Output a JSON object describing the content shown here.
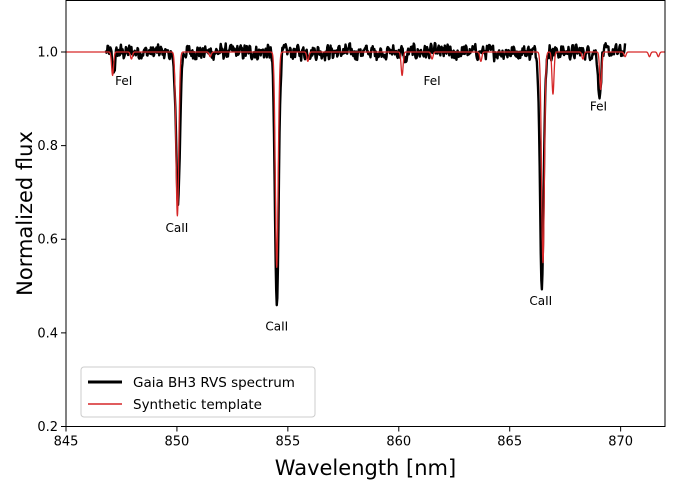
{
  "chart_data": {
    "type": "line",
    "xlabel": "Wavelength [nm]",
    "ylabel": "Normalized flux",
    "xlim": [
      845,
      872
    ],
    "ylim": [
      0.2,
      1.11
    ],
    "xticks": [
      845,
      850,
      855,
      860,
      865,
      870
    ],
    "yticks": [
      0.2,
      0.4,
      0.6,
      0.8,
      1.0
    ],
    "grid": false,
    "legend_position": "lower-left",
    "series": [
      {
        "name": "Gaia BH3 RVS spectrum",
        "color": "#000000",
        "x_range": [
          846.8,
          870.2
        ],
        "continuum": 1.0,
        "noise_amplitude": 0.02,
        "lines": [
          {
            "center": 847.15,
            "depth": 0.04
          },
          {
            "center": 849.8,
            "depth": 0.02
          },
          {
            "center": 850.05,
            "depth": 0.33
          },
          {
            "center": 854.5,
            "depth": 0.54
          },
          {
            "center": 860.3,
            "depth": 0.02
          },
          {
            "center": 862.5,
            "depth": 0.015
          },
          {
            "center": 866.45,
            "depth": 0.49
          },
          {
            "center": 869.05,
            "depth": 0.1
          }
        ]
      },
      {
        "name": "Synthetic template",
        "color": "#d62728",
        "x_range": [
          845,
          872
        ],
        "continuum": 1.0,
        "lines": [
          {
            "center": 847.1,
            "depth": 0.05
          },
          {
            "center": 847.95,
            "depth": 0.015
          },
          {
            "center": 850.02,
            "depth": 0.35
          },
          {
            "center": 851.5,
            "depth": 0.01
          },
          {
            "center": 854.5,
            "depth": 0.46
          },
          {
            "center": 855.9,
            "depth": 0.02
          },
          {
            "center": 860.15,
            "depth": 0.05
          },
          {
            "center": 861.5,
            "depth": 0.015
          },
          {
            "center": 863.7,
            "depth": 0.02
          },
          {
            "center": 866.5,
            "depth": 0.45
          },
          {
            "center": 866.95,
            "depth": 0.09
          },
          {
            "center": 868.3,
            "depth": 0.015
          },
          {
            "center": 869.1,
            "depth": 0.08
          },
          {
            "center": 870.2,
            "depth": 0.01
          },
          {
            "center": 871.3,
            "depth": 0.01
          },
          {
            "center": 871.7,
            "depth": 0.01
          }
        ]
      }
    ],
    "annotations": [
      {
        "text": "FeI",
        "x": 847.6,
        "y": 0.93
      },
      {
        "text": "CaII",
        "x": 850.0,
        "y": 0.615
      },
      {
        "text": "CaII",
        "x": 854.5,
        "y": 0.405
      },
      {
        "text": "FeI",
        "x": 861.5,
        "y": 0.93
      },
      {
        "text": "CaII",
        "x": 866.4,
        "y": 0.46
      },
      {
        "text": "FeI",
        "x": 869.0,
        "y": 0.875
      }
    ]
  }
}
